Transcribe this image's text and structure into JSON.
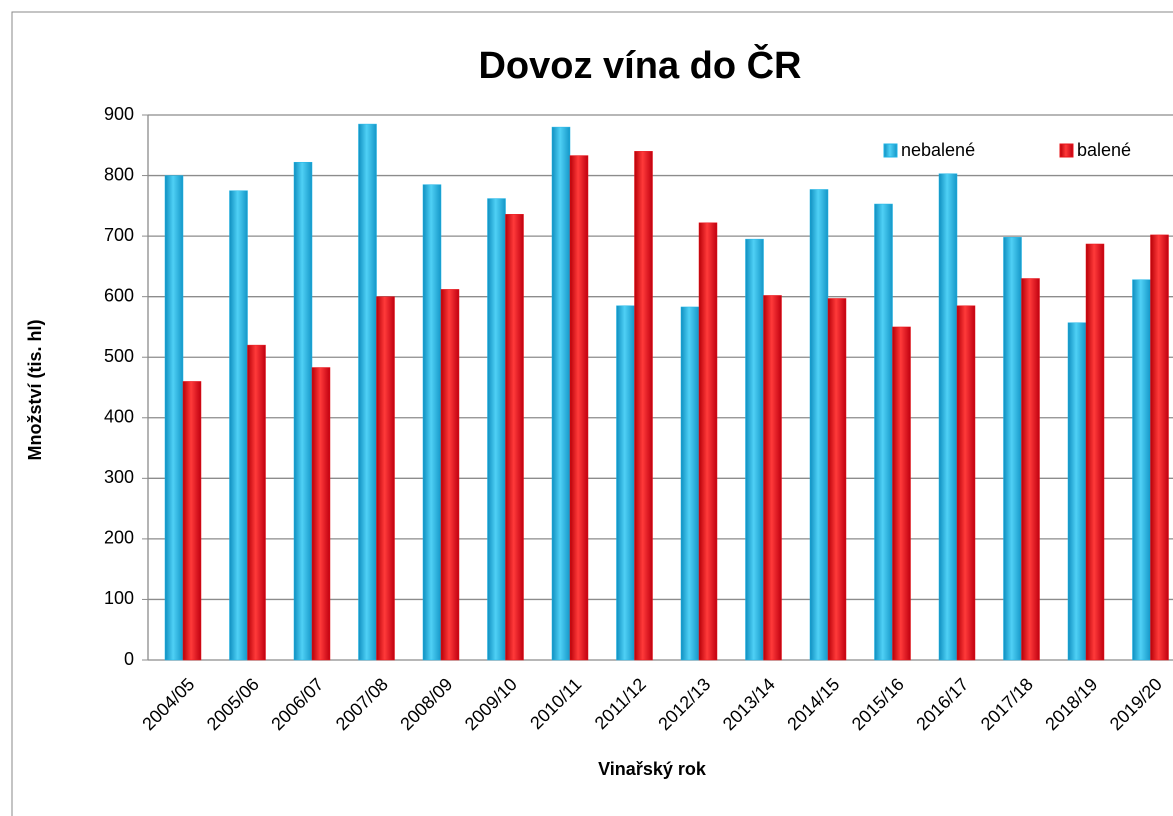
{
  "chart_data": {
    "type": "bar",
    "title": "Dovoz vína do ČR",
    "x_label": "Vinařský rok",
    "y_label": "Množství (tis. hl)",
    "categories": [
      "2004/05",
      "2005/06",
      "2006/07",
      "2007/08",
      "2008/09",
      "2009/10",
      "2010/11",
      "2011/12",
      "2012/13",
      "2013/14",
      "2014/15",
      "2015/16",
      "2016/17",
      "2017/18",
      "2018/19",
      "2019/20"
    ],
    "series": [
      {
        "name": "nebalené",
        "color": "#1fb4e6",
        "values": [
          800,
          775,
          822,
          885,
          785,
          762,
          880,
          585,
          583,
          695,
          777,
          753,
          803,
          698,
          557,
          628
        ]
      },
      {
        "name": "balené",
        "color": "#e8141a",
        "values": [
          460,
          520,
          483,
          600,
          612,
          736,
          833,
          840,
          722,
          602,
          597,
          550,
          585,
          630,
          687,
          702
        ]
      }
    ],
    "ylim": [
      0,
      900
    ],
    "yticks": [
      0,
      100,
      200,
      300,
      400,
      500,
      600,
      700,
      800,
      900
    ],
    "grid": true,
    "legend": "top-right"
  }
}
